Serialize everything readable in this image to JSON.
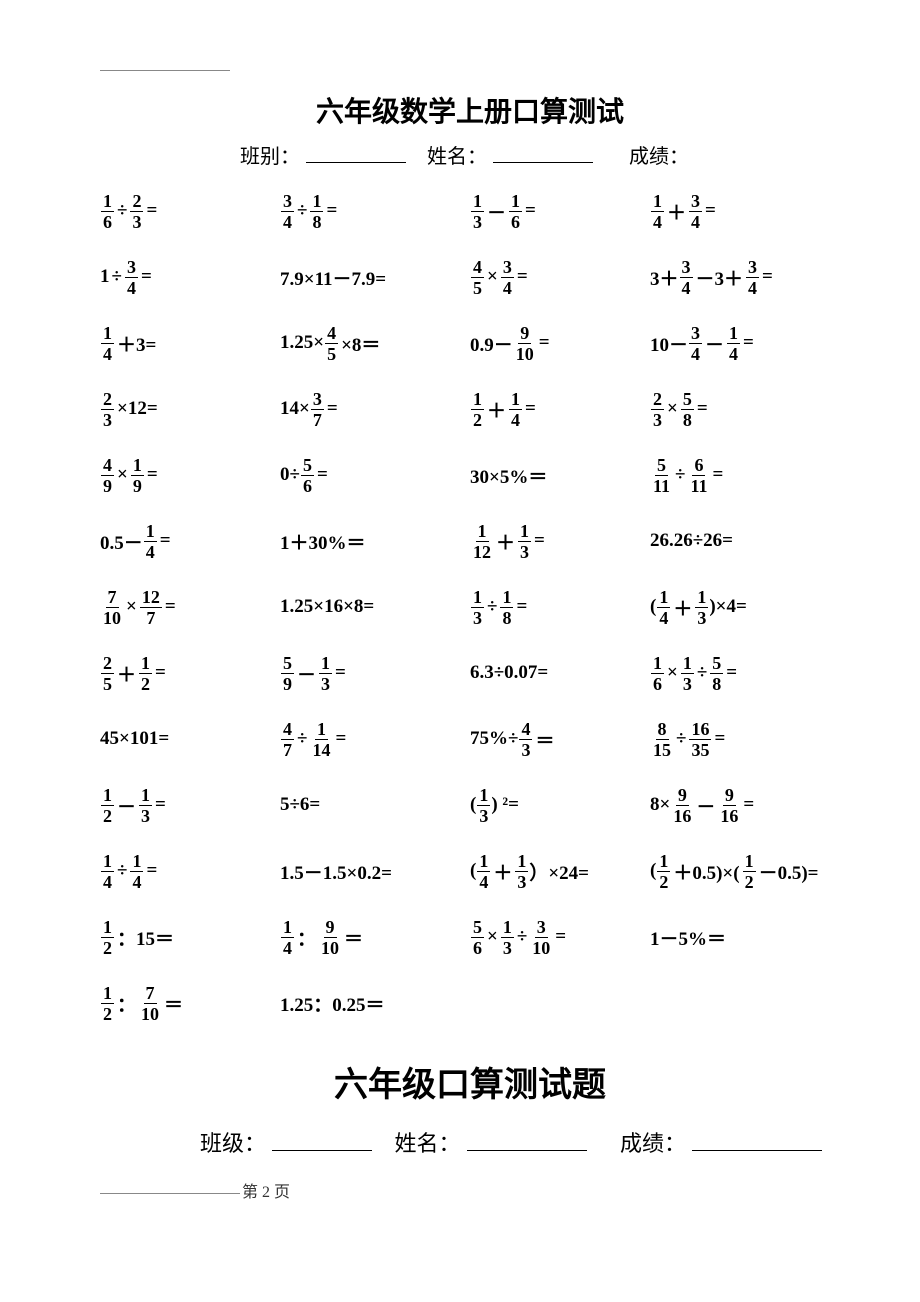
{
  "title1": "六年级数学上册口算测试",
  "title2": "六年级口算测试题",
  "labels": {
    "class1": "班别：",
    "class2": "班级：",
    "name": "姓名：",
    "score": "成绩：",
    "page_footer": "第 2 页"
  },
  "problems": [
    [
      {
        "t": "expr",
        "parts": [
          {
            "frac": [
              1,
              6
            ]
          },
          {
            "op": "÷"
          },
          {
            "frac": [
              2,
              3
            ]
          },
          {
            "op": "="
          }
        ]
      },
      {
        "t": "expr",
        "parts": [
          {
            "frac": [
              3,
              4
            ]
          },
          {
            "op": "÷"
          },
          {
            "frac": [
              1,
              8
            ]
          },
          {
            "op": "="
          }
        ]
      },
      {
        "t": "expr",
        "parts": [
          {
            "frac": [
              1,
              3
            ]
          },
          {
            "op": "－"
          },
          {
            "frac": [
              1,
              6
            ]
          },
          {
            "op": "="
          }
        ]
      },
      {
        "t": "expr",
        "parts": [
          {
            "frac": [
              1,
              4
            ]
          },
          {
            "op": "＋"
          },
          {
            "frac": [
              3,
              4
            ]
          },
          {
            "op": "="
          }
        ]
      }
    ],
    [
      {
        "t": "expr",
        "parts": [
          {
            "txt": "1"
          },
          {
            "op": "÷"
          },
          {
            "frac": [
              3,
              4
            ]
          },
          {
            "op": "="
          }
        ]
      },
      {
        "t": "expr",
        "parts": [
          {
            "txt": "7.9×11－7.9="
          }
        ]
      },
      {
        "t": "expr",
        "parts": [
          {
            "frac": [
              4,
              5
            ]
          },
          {
            "op": "×"
          },
          {
            "frac": [
              3,
              4
            ]
          },
          {
            "op": "="
          }
        ]
      },
      {
        "t": "expr",
        "parts": [
          {
            "txt": "3＋"
          },
          {
            "frac": [
              3,
              4
            ]
          },
          {
            "op": "－3＋"
          },
          {
            "frac": [
              3,
              4
            ]
          },
          {
            "op": "="
          }
        ]
      }
    ],
    [
      {
        "t": "expr",
        "parts": [
          {
            "frac": [
              1,
              4
            ]
          },
          {
            "op": "＋3="
          }
        ]
      },
      {
        "t": "expr",
        "parts": [
          {
            "txt": "1.25×"
          },
          {
            "frac": [
              4,
              5
            ]
          },
          {
            "op": "×8＝"
          }
        ]
      },
      {
        "t": "expr",
        "parts": [
          {
            "txt": "0.9－"
          },
          {
            "frac": [
              9,
              10
            ]
          },
          {
            "op": "="
          }
        ]
      },
      {
        "t": "expr",
        "parts": [
          {
            "txt": "10－"
          },
          {
            "frac": [
              3,
              4
            ]
          },
          {
            "op": "－"
          },
          {
            "frac": [
              1,
              4
            ]
          },
          {
            "op": "="
          }
        ]
      }
    ],
    [
      {
        "t": "expr",
        "parts": [
          {
            "frac": [
              2,
              3
            ]
          },
          {
            "op": "×12="
          }
        ]
      },
      {
        "t": "expr",
        "parts": [
          {
            "txt": "14×"
          },
          {
            "frac": [
              3,
              7
            ]
          },
          {
            "op": "="
          }
        ]
      },
      {
        "t": "expr",
        "parts": [
          {
            "frac": [
              1,
              2
            ]
          },
          {
            "op": "＋"
          },
          {
            "frac": [
              1,
              4
            ]
          },
          {
            "op": "="
          }
        ]
      },
      {
        "t": "expr",
        "parts": [
          {
            "frac": [
              2,
              3
            ]
          },
          {
            "op": "×"
          },
          {
            "frac": [
              5,
              8
            ]
          },
          {
            "op": "="
          }
        ]
      }
    ],
    [
      {
        "t": "expr",
        "parts": [
          {
            "frac": [
              4,
              9
            ]
          },
          {
            "op": "×"
          },
          {
            "frac": [
              1,
              9
            ]
          },
          {
            "op": "="
          }
        ]
      },
      {
        "t": "expr",
        "parts": [
          {
            "txt": "0÷"
          },
          {
            "frac": [
              5,
              6
            ]
          },
          {
            "op": "="
          }
        ]
      },
      {
        "t": "expr",
        "parts": [
          {
            "txt": "30×5%＝"
          }
        ]
      },
      {
        "t": "expr",
        "parts": [
          {
            "frac": [
              5,
              11
            ]
          },
          {
            "op": "÷"
          },
          {
            "frac": [
              6,
              11
            ]
          },
          {
            "op": "="
          }
        ]
      }
    ],
    [
      {
        "t": "expr",
        "parts": [
          {
            "txt": "0.5－"
          },
          {
            "frac": [
              1,
              4
            ]
          },
          {
            "op": "="
          }
        ]
      },
      {
        "t": "expr",
        "parts": [
          {
            "txt": "1＋30%＝"
          }
        ]
      },
      {
        "t": "expr",
        "parts": [
          {
            "frac": [
              1,
              12
            ]
          },
          {
            "op": "＋"
          },
          {
            "frac": [
              1,
              3
            ]
          },
          {
            "op": "="
          }
        ]
      },
      {
        "t": "expr",
        "parts": [
          {
            "txt": "26.26÷26="
          }
        ]
      }
    ],
    [
      {
        "t": "expr",
        "parts": [
          {
            "frac": [
              7,
              10
            ]
          },
          {
            "op": "×"
          },
          {
            "frac": [
              12,
              7
            ]
          },
          {
            "op": "="
          }
        ]
      },
      {
        "t": "expr",
        "parts": [
          {
            "txt": "1.25×16×8="
          }
        ]
      },
      {
        "t": "expr",
        "parts": [
          {
            "frac": [
              1,
              3
            ]
          },
          {
            "op": "÷"
          },
          {
            "frac": [
              1,
              8
            ]
          },
          {
            "op": "="
          }
        ]
      },
      {
        "t": "expr",
        "parts": [
          {
            "txt": "("
          },
          {
            "frac": [
              1,
              4
            ]
          },
          {
            "op": "＋"
          },
          {
            "frac": [
              1,
              3
            ]
          },
          {
            "txt": ")×4="
          }
        ]
      }
    ],
    [
      {
        "t": "expr",
        "parts": [
          {
            "frac": [
              2,
              5
            ]
          },
          {
            "op": "＋"
          },
          {
            "frac": [
              1,
              2
            ]
          },
          {
            "op": "="
          }
        ]
      },
      {
        "t": "expr",
        "parts": [
          {
            "frac": [
              5,
              9
            ]
          },
          {
            "op": "－"
          },
          {
            "frac": [
              1,
              3
            ]
          },
          {
            "op": "="
          }
        ]
      },
      {
        "t": "expr",
        "parts": [
          {
            "txt": "6.3÷0.07="
          }
        ]
      },
      {
        "t": "expr",
        "parts": [
          {
            "frac": [
              1,
              6
            ]
          },
          {
            "op": "×"
          },
          {
            "frac": [
              1,
              3
            ]
          },
          {
            "op": "÷"
          },
          {
            "frac": [
              5,
              8
            ]
          },
          {
            "op": "="
          }
        ]
      }
    ],
    [
      {
        "t": "expr",
        "parts": [
          {
            "txt": "45×101="
          }
        ]
      },
      {
        "t": "expr",
        "parts": [
          {
            "frac": [
              4,
              7
            ]
          },
          {
            "op": "÷"
          },
          {
            "frac": [
              1,
              14
            ]
          },
          {
            "op": "="
          }
        ]
      },
      {
        "t": "expr",
        "parts": [
          {
            "txt": "75%÷"
          },
          {
            "frac": [
              4,
              3
            ]
          },
          {
            "op": "＝"
          }
        ]
      },
      {
        "t": "expr",
        "parts": [
          {
            "frac": [
              8,
              15
            ]
          },
          {
            "op": "÷"
          },
          {
            "frac": [
              16,
              35
            ]
          },
          {
            "op": "="
          }
        ]
      }
    ],
    [
      {
        "t": "expr",
        "parts": [
          {
            "frac": [
              1,
              2
            ]
          },
          {
            "op": "－"
          },
          {
            "frac": [
              1,
              3
            ]
          },
          {
            "op": "="
          }
        ]
      },
      {
        "t": "expr",
        "parts": [
          {
            "txt": "5÷6="
          }
        ]
      },
      {
        "t": "expr",
        "parts": [
          {
            "txt": "("
          },
          {
            "frac": [
              1,
              3
            ]
          },
          {
            "txt": ") ²="
          }
        ]
      },
      {
        "t": "expr",
        "parts": [
          {
            "txt": "8×"
          },
          {
            "frac": [
              9,
              16
            ]
          },
          {
            "op": "－"
          },
          {
            "frac": [
              9,
              16
            ]
          },
          {
            "op": "="
          }
        ]
      }
    ],
    [
      {
        "t": "expr",
        "parts": [
          {
            "frac": [
              1,
              4
            ]
          },
          {
            "op": "÷"
          },
          {
            "frac": [
              1,
              4
            ]
          },
          {
            "op": "="
          }
        ]
      },
      {
        "t": "expr",
        "parts": [
          {
            "txt": "1.5－1.5×0.2="
          }
        ]
      },
      {
        "t": "expr",
        "parts": [
          {
            "txt": "("
          },
          {
            "frac": [
              1,
              4
            ]
          },
          {
            "op": "＋"
          },
          {
            "frac": [
              1,
              3
            ]
          },
          {
            "txt": "）×24="
          }
        ]
      },
      {
        "t": "expr",
        "parts": [
          {
            "txt": "("
          },
          {
            "frac": [
              1,
              2
            ]
          },
          {
            "op": "＋0.5)×("
          },
          {
            "frac": [
              1,
              2
            ]
          },
          {
            "op": "－0.5)="
          }
        ]
      }
    ],
    [
      {
        "t": "expr",
        "parts": [
          {
            "frac": [
              1,
              2
            ]
          },
          {
            "op": "：15＝"
          }
        ]
      },
      {
        "t": "expr",
        "parts": [
          {
            "frac": [
              1,
              4
            ]
          },
          {
            "op": "："
          },
          {
            "frac": [
              9,
              10
            ]
          },
          {
            "op": "＝"
          }
        ]
      },
      {
        "t": "expr",
        "parts": [
          {
            "frac": [
              5,
              6
            ]
          },
          {
            "op": "×"
          },
          {
            "frac": [
              1,
              3
            ]
          },
          {
            "op": "÷"
          },
          {
            "frac": [
              3,
              10
            ]
          },
          {
            "op": "="
          }
        ]
      },
      {
        "t": "expr",
        "parts": [
          {
            "txt": "1－5%＝"
          }
        ]
      }
    ],
    [
      {
        "t": "expr",
        "parts": [
          {
            "frac": [
              1,
              2
            ]
          },
          {
            "op": "："
          },
          {
            "frac": [
              7,
              10
            ]
          },
          {
            "op": "＝"
          }
        ]
      },
      {
        "t": "expr",
        "parts": [
          {
            "txt": "1.25：0.25＝"
          }
        ]
      },
      {
        "t": "empty"
      },
      {
        "t": "empty"
      }
    ]
  ]
}
